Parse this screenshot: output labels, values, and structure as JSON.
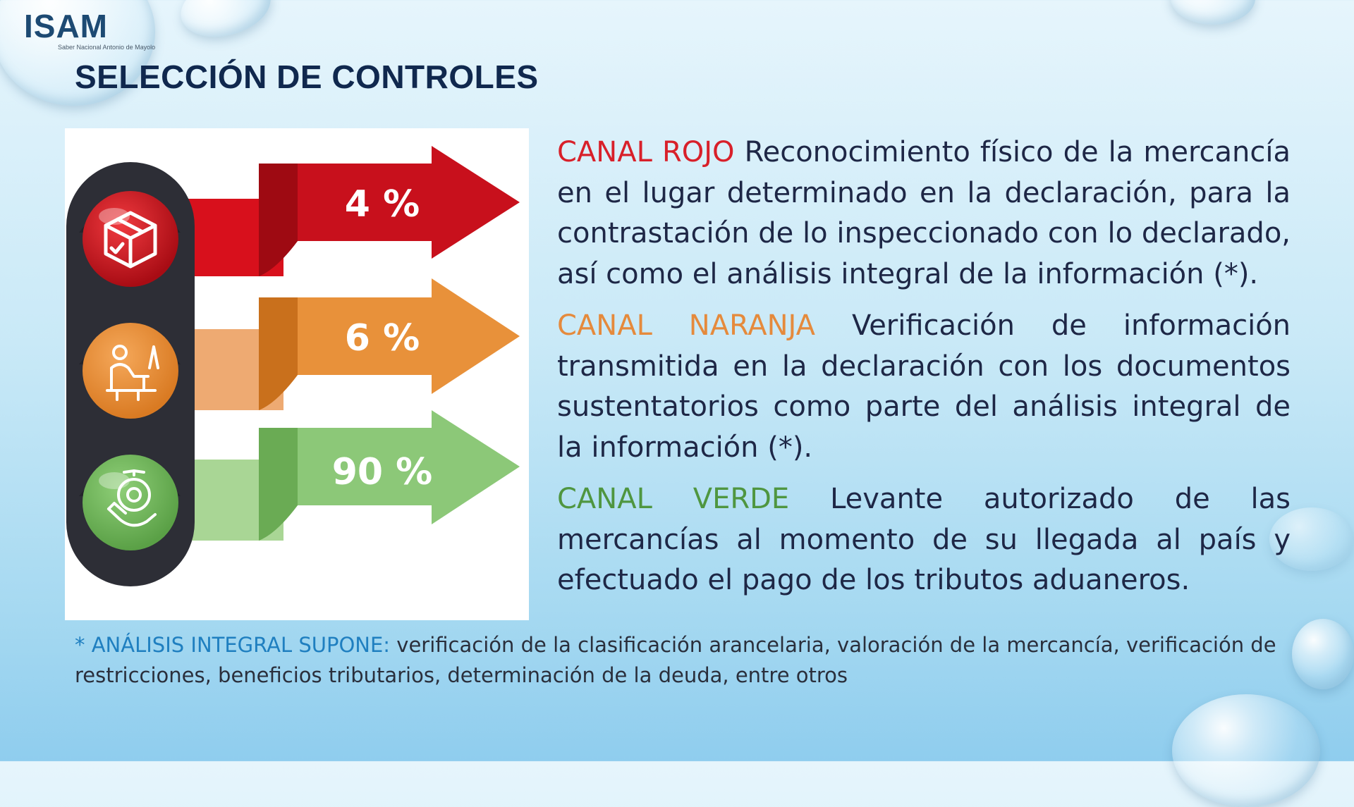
{
  "logo": {
    "text": "ISAM",
    "subtitle": "Saber Nacional Antonio de Mayolo"
  },
  "page_title": "SELECCIÓN DE CONTROLES",
  "traffic_light": [
    {
      "percent": "4 %",
      "color": "#c8101c",
      "icon": "box-check-icon"
    },
    {
      "percent": "6 %",
      "color": "#e8913a",
      "icon": "person-desk-icon"
    },
    {
      "percent": "90 %",
      "color": "#7fbf68",
      "icon": "stamp-hand-icon"
    }
  ],
  "channels": [
    {
      "label": "CANAL ROJO",
      "text": "Reconocimiento físico de la mercancía en el lugar determinado en la declaración, para la contrastación de lo inspeccionado con lo declarado, así como el análisis integral de la información (*).",
      "color": "#d8202a"
    },
    {
      "label": "CANAL NARANJA",
      "text": "Verificación de información transmitida en la declaración con los documentos sustentatorios como parte del análisis integral de la información (*).",
      "color": "#e58a3c"
    },
    {
      "label": "CANAL VERDE",
      "text": "Levante autorizado de las mercancías al momento de su llegada al país y efectuado el pago de los tributos aduaneros.",
      "color": "#4f9640"
    }
  ],
  "footnote": {
    "label": "* ANÁLISIS INTEGRAL SUPONE:",
    "text": "verificación de la clasificación arancelaria, valoración de la mercancía, verificación de restricciones, beneficios tributarios, determinación de la deuda, entre otros"
  }
}
